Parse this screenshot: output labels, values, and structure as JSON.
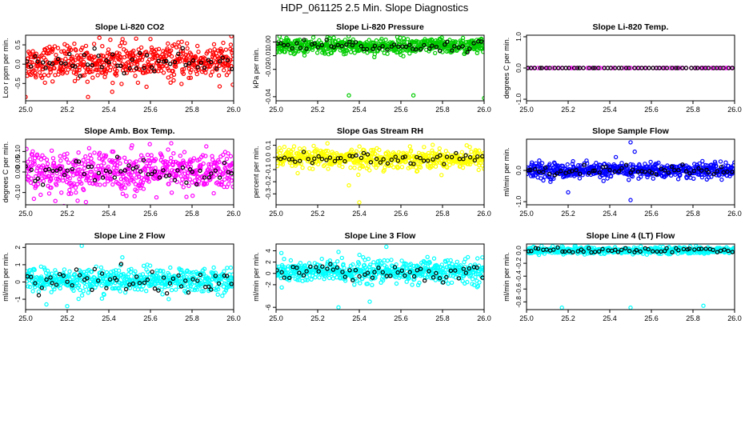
{
  "page_title": "HDP_061125  2.5 Min. Slope Diagnostics",
  "chart_data": [
    {
      "type": "scatter",
      "title": "Slope Li-820 CO2",
      "ylabel": "Lco r ppm per min.",
      "xlabel": "",
      "xlim": [
        25.0,
        26.0
      ],
      "ylim": [
        -0.95,
        0.75
      ],
      "xticks": [
        "25.0",
        "25.2",
        "25.4",
        "25.6",
        "25.8",
        "26.0"
      ],
      "xtick_values": [
        25.0,
        25.2,
        25.4,
        25.6,
        25.8,
        26.0
      ],
      "yticks": [
        "-0.5",
        "0.0",
        "0.5"
      ],
      "ytick_values": [
        -0.5,
        0.0,
        0.5
      ],
      "series": [
        {
          "color": "#ff0000",
          "center": 0.05,
          "spread": 0.22,
          "count": 560,
          "outliers": [
            [
              25.0,
              -0.85
            ],
            [
              25.3,
              -0.85
            ],
            [
              25.6,
              0.65
            ],
            [
              25.95,
              0.55
            ]
          ]
        },
        {
          "color": "#000000",
          "center": 0.05,
          "spread": 0.15,
          "count": 55
        }
      ]
    },
    {
      "type": "scatter",
      "title": "Slope Li-820 Pressure",
      "ylabel": "kPa per min.",
      "xlabel": "",
      "xlim": [
        25.0,
        26.0
      ],
      "ylim": [
        -0.043,
        0.005
      ],
      "xticks": [
        "25.0",
        "25.2",
        "25.4",
        "25.6",
        "25.8",
        "26.0"
      ],
      "xtick_values": [
        25.0,
        25.2,
        25.4,
        25.6,
        25.8,
        26.0
      ],
      "yticks": [
        "-0.04",
        "-0.02",
        "-0.01",
        "0.00"
      ],
      "ytick_values": [
        -0.04,
        -0.02,
        -0.01,
        0.0
      ],
      "series": [
        {
          "color": "#00cc00",
          "center": -0.003,
          "spread": 0.0028,
          "count": 560,
          "outliers": [
            [
              25.35,
              -0.039
            ],
            [
              25.66,
              -0.039
            ],
            [
              26.0,
              -0.041
            ],
            [
              25.05,
              0.003
            ]
          ]
        },
        {
          "color": "#000000",
          "center": -0.003,
          "spread": 0.002,
          "count": 55
        }
      ]
    },
    {
      "type": "scatter",
      "title": "Slope Li-820 Temp.",
      "ylabel": "degrees C per min.",
      "xlabel": "",
      "xlim": [
        25.0,
        26.0
      ],
      "ylim": [
        -1.05,
        1.05
      ],
      "xticks": [
        "25.0",
        "25.2",
        "25.4",
        "25.6",
        "25.8",
        "26.0"
      ],
      "xtick_values": [
        25.0,
        25.2,
        25.4,
        25.6,
        25.8,
        26.0
      ],
      "yticks": [
        "-1.0",
        "0.0",
        "1.0"
      ],
      "ytick_values": [
        -1.0,
        0.0,
        1.0
      ],
      "series": [
        {
          "color": "#ff00ff",
          "center": 0.0,
          "spread": 0.0,
          "count": 60
        },
        {
          "color": "#000000",
          "center": 0.0,
          "spread": 0.0,
          "count": 55
        }
      ]
    },
    {
      "type": "scatter",
      "title": "Slope Amb. Box Temp.",
      "ylabel": "degrees C per min.",
      "xlabel": "",
      "xlim": [
        25.0,
        26.0
      ],
      "ylim": [
        -0.16,
        0.16
      ],
      "xticks": [
        "25.0",
        "25.2",
        "25.4",
        "25.6",
        "25.8",
        "26.0"
      ],
      "xtick_values": [
        25.0,
        25.2,
        25.4,
        25.6,
        25.8,
        26.0
      ],
      "yticks": [
        "-0.10",
        "0.00",
        "0.05",
        "0.10"
      ],
      "ytick_values": [
        -0.1,
        0.0,
        0.05,
        0.1
      ],
      "series": [
        {
          "color": "#ff00ff",
          "center": 0.0,
          "spread": 0.05,
          "count": 560,
          "outliers": [
            [
              25.25,
              -0.14
            ],
            [
              25.7,
              0.14
            ]
          ]
        },
        {
          "color": "#000000",
          "center": 0.0,
          "spread": 0.035,
          "count": 55
        }
      ]
    },
    {
      "type": "scatter",
      "title": "Slope Gas Stream RH",
      "ylabel": "percent per min.",
      "xlabel": "",
      "xlim": [
        25.0,
        26.0
      ],
      "ylim": [
        -0.39,
        0.15
      ],
      "xticks": [
        "25.0",
        "25.2",
        "25.4",
        "25.6",
        "25.8",
        "26.0"
      ],
      "xtick_values": [
        25.0,
        25.2,
        25.4,
        25.6,
        25.8,
        26.0
      ],
      "yticks": [
        "-0.3",
        "-0.2",
        "-0.1",
        "0.0",
        "0.1"
      ],
      "ytick_values": [
        -0.3,
        -0.2,
        -0.1,
        0.0,
        0.1
      ],
      "series": [
        {
          "color": "#ffff00",
          "center": -0.01,
          "spread": 0.04,
          "count": 560,
          "outliers": [
            [
              25.4,
              -0.37
            ],
            [
              25.35,
              -0.23
            ]
          ]
        },
        {
          "color": "#000000",
          "center": -0.01,
          "spread": 0.03,
          "count": 55
        }
      ]
    },
    {
      "type": "scatter",
      "title": "Slope Sample Flow",
      "ylabel": "ml/min per min.",
      "xlabel": "",
      "xlim": [
        25.0,
        26.0
      ],
      "ylim": [
        -1.1,
        1.0
      ],
      "xticks": [
        "25.0",
        "25.2",
        "25.4",
        "25.6",
        "25.8",
        "26.0"
      ],
      "xtick_values": [
        25.0,
        25.2,
        25.4,
        25.6,
        25.8,
        26.0
      ],
      "yticks": [
        "-1.0",
        "0.0"
      ],
      "ytick_values": [
        -1.0,
        0.0
      ],
      "series": [
        {
          "color": "#0000ff",
          "center": 0.0,
          "spread": 0.12,
          "count": 560,
          "outliers": [
            [
              25.5,
              0.9
            ],
            [
              25.5,
              -0.95
            ],
            [
              25.52,
              0.6
            ],
            [
              25.2,
              -0.7
            ]
          ]
        },
        {
          "color": "#000000",
          "center": 0.0,
          "spread": 0.08,
          "count": 55
        }
      ]
    },
    {
      "type": "scatter",
      "title": "Slope Line 2 Flow",
      "ylabel": "ml/min per min.",
      "xlabel": "",
      "xlim": [
        25.0,
        26.0
      ],
      "ylim": [
        -1.6,
        2.2
      ],
      "xticks": [
        "25.0",
        "25.2",
        "25.4",
        "25.6",
        "25.8",
        "26.0"
      ],
      "xtick_values": [
        25.0,
        25.2,
        25.4,
        25.6,
        25.8,
        26.0
      ],
      "yticks": [
        "-1",
        "0",
        "1",
        "2"
      ],
      "ytick_values": [
        -1,
        0,
        1,
        2
      ],
      "series": [
        {
          "color": "#00ffff",
          "center": 0.1,
          "spread": 0.35,
          "count": 560,
          "outliers": [
            [
              25.27,
              2.1
            ],
            [
              25.2,
              -1.4
            ],
            [
              25.1,
              -1.3
            ]
          ]
        },
        {
          "color": "#000000",
          "center": 0.05,
          "spread": 0.4,
          "count": 55
        }
      ]
    },
    {
      "type": "scatter",
      "title": "Slope Line 3 Flow",
      "ylabel": "ml/min per min.",
      "xlabel": "",
      "xlim": [
        25.0,
        26.0
      ],
      "ylim": [
        -6.4,
        5.2
      ],
      "xticks": [
        "25.0",
        "25.2",
        "25.4",
        "25.6",
        "25.8",
        "26.0"
      ],
      "xtick_values": [
        25.0,
        25.2,
        25.4,
        25.6,
        25.8,
        26.0
      ],
      "yticks": [
        "-6",
        "-2",
        "0",
        "2",
        "4"
      ],
      "ytick_values": [
        -6,
        -2,
        0,
        2,
        4
      ],
      "series": [
        {
          "color": "#00ffff",
          "center": 0.3,
          "spread": 1.0,
          "count": 560,
          "outliers": [
            [
              25.3,
              -6.0
            ],
            [
              25.45,
              -5.0
            ],
            [
              25.53,
              4.7
            ],
            [
              25.3,
              3.8
            ]
          ]
        },
        {
          "color": "#000000",
          "center": 0.2,
          "spread": 0.8,
          "count": 55
        }
      ]
    },
    {
      "type": "scatter",
      "title": "Slope Line 4 (LT) Flow",
      "ylabel": "ml/min per min.",
      "xlabel": "",
      "xlim": [
        25.0,
        26.0
      ],
      "ylim": [
        -0.92,
        0.1
      ],
      "xticks": [
        "25.0",
        "25.2",
        "25.4",
        "25.6",
        "25.8",
        "26.0"
      ],
      "xtick_values": [
        25.0,
        25.2,
        25.4,
        25.6,
        25.8,
        26.0
      ],
      "yticks": [
        "-0.8",
        "-0.6",
        "-0.4",
        "-0.2",
        "0.0"
      ],
      "ytick_values": [
        -0.8,
        -0.6,
        -0.4,
        -0.2,
        0.0
      ],
      "series": [
        {
          "color": "#00ffff",
          "center": 0.0,
          "spread": 0.025,
          "count": 560,
          "outliers": [
            [
              25.17,
              -0.89
            ],
            [
              25.5,
              -0.89
            ],
            [
              25.85,
              -0.86
            ]
          ]
        },
        {
          "color": "#000000",
          "center": 0.0,
          "spread": 0.02,
          "count": 55
        }
      ]
    }
  ]
}
